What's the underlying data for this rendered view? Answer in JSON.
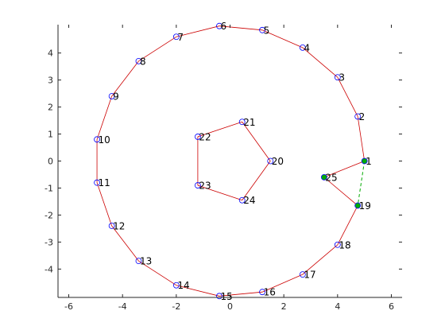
{
  "chart_data": {
    "type": "scatter",
    "title": "",
    "xlabel": "",
    "ylabel": "",
    "xlim": [
      -6.4,
      6.4
    ],
    "ylim": [
      -5.05,
      5.05
    ],
    "x_ticks": [
      -6,
      -4,
      -2,
      0,
      2,
      4,
      6
    ],
    "x_tick_labels": [
      "-6",
      "-4",
      "-2",
      "0",
      "2",
      "4",
      "6"
    ],
    "y_ticks": [
      -4,
      -3,
      -2,
      -1,
      0,
      1,
      2,
      3,
      4
    ],
    "y_tick_labels": [
      "-4",
      "-3",
      "-2",
      "-1",
      "0",
      "1",
      "2",
      "3",
      "4"
    ],
    "grid": false,
    "colors": {
      "edge": "#cc0000",
      "marker": "#0000ff",
      "dashed_edge": "#00aa00",
      "highlight_marker": "#00aa00"
    },
    "nodes": [
      {
        "label": "1",
        "x": 5.0,
        "y": 0.0
      },
      {
        "label": "2",
        "x": 4.75,
        "y": 1.65
      },
      {
        "label": "3",
        "x": 4.0,
        "y": 3.1
      },
      {
        "label": "4",
        "x": 2.7,
        "y": 4.2
      },
      {
        "label": "5",
        "x": 1.2,
        "y": 4.85
      },
      {
        "label": "6",
        "x": -0.4,
        "y": 5.0
      },
      {
        "label": "7",
        "x": -2.0,
        "y": 4.6
      },
      {
        "label": "8",
        "x": -3.4,
        "y": 3.7
      },
      {
        "label": "9",
        "x": -4.4,
        "y": 2.4
      },
      {
        "label": "10",
        "x": -4.95,
        "y": 0.8
      },
      {
        "label": "11",
        "x": -4.95,
        "y": -0.8
      },
      {
        "label": "12",
        "x": -4.4,
        "y": -2.4
      },
      {
        "label": "13",
        "x": -3.4,
        "y": -3.7
      },
      {
        "label": "14",
        "x": -2.0,
        "y": -4.6
      },
      {
        "label": "15",
        "x": -0.4,
        "y": -5.0
      },
      {
        "label": "16",
        "x": 1.2,
        "y": -4.85
      },
      {
        "label": "17",
        "x": 2.7,
        "y": -4.2
      },
      {
        "label": "18",
        "x": 4.0,
        "y": -3.1
      },
      {
        "label": "19",
        "x": 4.75,
        "y": -1.65
      },
      {
        "label": "20",
        "x": 1.5,
        "y": 0.0
      },
      {
        "label": "21",
        "x": 0.45,
        "y": 1.45
      },
      {
        "label": "22",
        "x": -1.2,
        "y": 0.9
      },
      {
        "label": "23",
        "x": -1.2,
        "y": -0.9
      },
      {
        "label": "24",
        "x": 0.45,
        "y": -1.45
      },
      {
        "label": "25",
        "x": 3.5,
        "y": -0.6
      }
    ],
    "edges": [
      [
        1,
        2
      ],
      [
        2,
        3
      ],
      [
        3,
        4
      ],
      [
        4,
        5
      ],
      [
        5,
        6
      ],
      [
        6,
        7
      ],
      [
        7,
        8
      ],
      [
        8,
        9
      ],
      [
        9,
        10
      ],
      [
        10,
        11
      ],
      [
        11,
        12
      ],
      [
        12,
        13
      ],
      [
        13,
        14
      ],
      [
        14,
        15
      ],
      [
        15,
        16
      ],
      [
        16,
        17
      ],
      [
        17,
        18
      ],
      [
        18,
        19
      ],
      [
        19,
        25
      ],
      [
        25,
        1
      ],
      [
        20,
        21
      ],
      [
        21,
        22
      ],
      [
        22,
        23
      ],
      [
        23,
        24
      ],
      [
        24,
        20
      ]
    ],
    "dashed_edges": [
      [
        1,
        19
      ]
    ],
    "highlight_nodes": [
      1,
      19,
      25
    ]
  }
}
